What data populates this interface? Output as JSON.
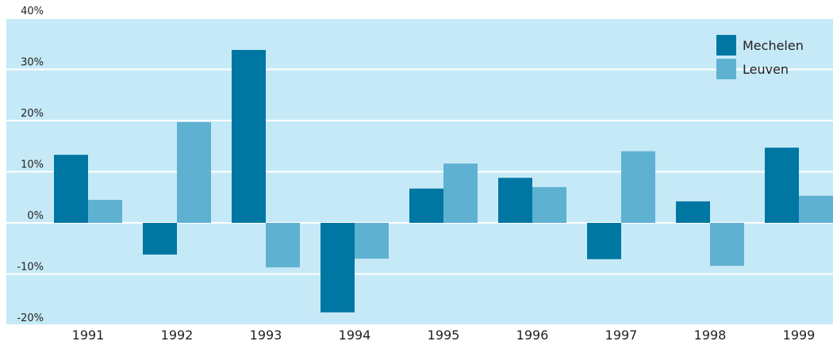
{
  "chart_data": {
    "type": "bar",
    "categories": [
      "1991",
      "1992",
      "1993",
      "1994",
      "1995",
      "1996",
      "1997",
      "1998",
      "1999"
    ],
    "series": [
      {
        "name": "Mechelen",
        "color": "#0077a3",
        "values": [
          13.3,
          -6.2,
          33.8,
          -17.5,
          6.7,
          8.8,
          -7.1,
          4.2,
          14.7
        ]
      },
      {
        "name": "Leuven",
        "color": "#5fb1d1",
        "values": [
          4.5,
          19.7,
          -8.7,
          -7.0,
          11.6,
          7.0,
          14.0,
          -8.4,
          5.3
        ]
      }
    ],
    "ylim": [
      -20,
      40
    ],
    "yticks": [
      {
        "value": -20,
        "label": "-20%"
      },
      {
        "value": -10,
        "label": "-10%"
      },
      {
        "value": 0,
        "label": "0%"
      },
      {
        "value": 10,
        "label": "10%"
      },
      {
        "value": 20,
        "label": "20%"
      },
      {
        "value": 30,
        "label": "30%"
      },
      {
        "value": 40,
        "label": "40%"
      }
    ],
    "grid": true,
    "legend": "top-right",
    "background": "#c6e9f7"
  }
}
